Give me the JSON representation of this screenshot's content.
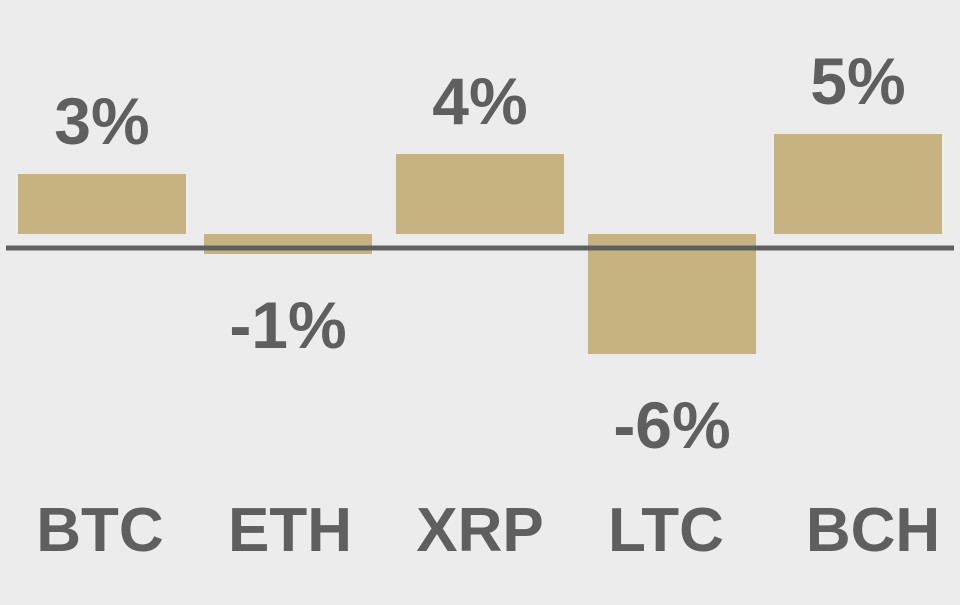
{
  "chart_data": {
    "type": "bar",
    "categories": [
      "BTC",
      "ETH",
      "XRP",
      "LTC",
      "BCH"
    ],
    "values": [
      3,
      -1,
      4,
      -6,
      5
    ],
    "value_labels": [
      "3%",
      "-1%",
      "4%",
      "-6%",
      "5%"
    ],
    "title": "",
    "xlabel": "",
    "ylabel": "",
    "unit": "%",
    "ylim": [
      -6,
      5
    ],
    "grid": false,
    "legend": "none",
    "colors": {
      "bar": "#c7b37f",
      "text": "#5f5f5f",
      "axis": "#5f5f5f",
      "background": "#ececec"
    }
  }
}
